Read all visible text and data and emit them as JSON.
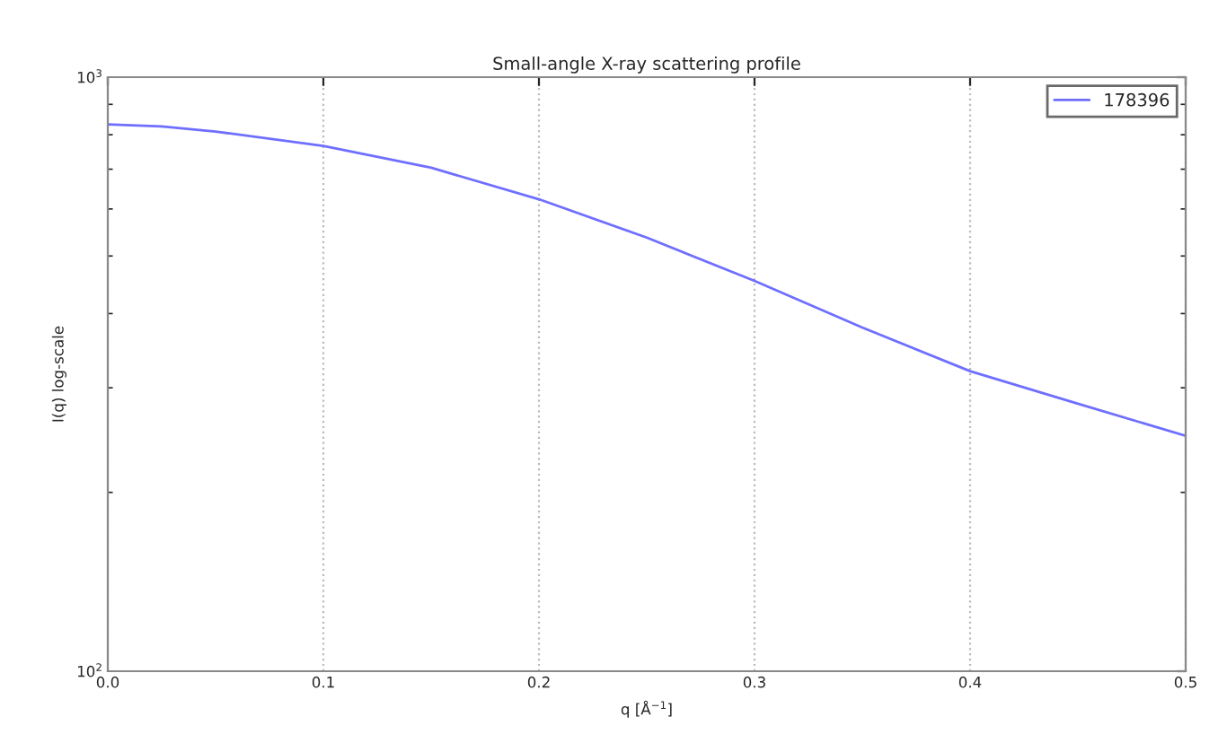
{
  "chart_data": {
    "type": "line",
    "title": "Small-angle X-ray scattering profile",
    "xlabel": "q [Å$^{−1}$]",
    "ylabel": "I(q) log-scale",
    "x": [
      0,
      0.025,
      0.05,
      0.1,
      0.15,
      0.2,
      0.25,
      0.3,
      0.35,
      0.4,
      0.45,
      0.5
    ],
    "series": [
      {
        "name": "178396",
        "color": "#6f6fff",
        "values": [
          833,
          826,
          810,
          766,
          704,
          623,
          537,
          454,
          379,
          320,
          282,
          249
        ]
      }
    ],
    "log": "y",
    "xlim": [
      0,
      0.5
    ],
    "xticks": [
      {
        "value": 0,
        "label": "0.0"
      },
      0.1,
      0.2,
      0.3,
      0.4,
      0.5
    ],
    "ylim": [
      100,
      1000
    ],
    "yticks": [
      {
        "value": 100,
        "label": "10$^{2}$"
      },
      {
        "value": 1000,
        "label": "10$^{3}$"
      }
    ],
    "grid": "x",
    "legend": "top right",
    "marker": "none",
    "line_style": "solid"
  }
}
